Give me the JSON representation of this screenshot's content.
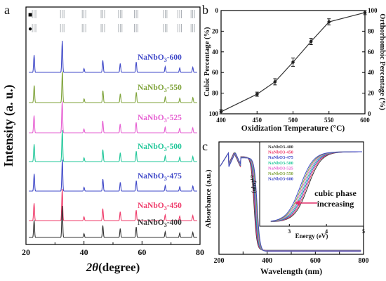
{
  "chart_data": [
    {
      "panel": "a",
      "type": "line",
      "xlabel_symbol": "2θ",
      "xlabel_unit": "(degree)",
      "ylabel": "Intensity (a. u.)",
      "xlim": [
        20,
        80
      ],
      "x_ticks": [
        "20",
        "40",
        "60",
        "80"
      ],
      "reference_markers": [
        "■",
        "●"
      ],
      "peaks_2theta": [
        22.8,
        32.5,
        40.0,
        46.5,
        52.5,
        58.0,
        68.0,
        73.0,
        77.5
      ],
      "peak_heights": [
        0.55,
        1.0,
        0.12,
        0.38,
        0.28,
        0.33,
        0.18,
        0.14,
        0.16
      ],
      "series": [
        {
          "base": "NaNbO",
          "sub": "3",
          "suffix": "-600",
          "color": "#3f48c8"
        },
        {
          "base": "NaNbO",
          "sub": "3",
          "suffix": "-550",
          "color": "#7fa33a"
        },
        {
          "base": "NaNbO",
          "sub": "3",
          "suffix": "-525",
          "color": "#e65fd2"
        },
        {
          "base": "NaNbO",
          "sub": "3",
          "suffix": "-500",
          "color": "#21c79a"
        },
        {
          "base": "NaNbO",
          "sub": "3",
          "suffix": "-475",
          "color": "#3f48c8"
        },
        {
          "base": "NaNbO",
          "sub": "3",
          "suffix": "-450",
          "color": "#ef3b6a"
        },
        {
          "base": "NaNbO",
          "sub": "3",
          "suffix": "-400",
          "color": "#333333"
        }
      ]
    },
    {
      "panel": "b",
      "type": "line",
      "xlabel": "Oxidization Temperature (°C)",
      "ylabel_left": "Cubic Percentage (%)",
      "ylabel_right": "Orthorhombic Percentage (%)",
      "xlim": [
        400,
        600
      ],
      "x_ticks": [
        400,
        450,
        500,
        550,
        600
      ],
      "y_left_ticks": [
        0,
        20,
        40,
        60,
        80,
        100
      ],
      "y_right_ticks": [
        0,
        20,
        40,
        60,
        80,
        100
      ],
      "x": [
        400,
        450,
        475,
        500,
        525,
        550,
        600
      ],
      "cubic": [
        98,
        81,
        69,
        50,
        30,
        11,
        2
      ],
      "orthorhombic": [
        2,
        19,
        31,
        50,
        70,
        89,
        98
      ],
      "error": [
        2,
        2,
        3,
        4,
        3,
        3,
        2
      ]
    },
    {
      "panel": "c",
      "type": "line",
      "xlabel": "Wavelength (nm)",
      "ylabel": "Absorbance (a.u.)",
      "xlim": [
        200,
        800
      ],
      "x_ticks": [
        200,
        300,
        400,
        500,
        600,
        700,
        800
      ],
      "inset": {
        "xlabel": "Energy (eV)",
        "ylabel": "(αhν)",
        "ylabel_sup": "1/2",
        "x_ticks": [
          "3",
          "4",
          "5"
        ],
        "annotation_line1": "cubic phase",
        "annotation_line2": "increasing"
      },
      "series": [
        {
          "name": "NaNbO3-400",
          "color": "#333333"
        },
        {
          "name": "NaNbO3-450",
          "color": "#ef3b6a"
        },
        {
          "name": "NaNbO3-475",
          "color": "#3f48c8"
        },
        {
          "name": "NaNbO3-500",
          "color": "#21c79a"
        },
        {
          "name": "NaNbO3-525",
          "color": "#e65fd2"
        },
        {
          "name": "NaNbO3-550",
          "color": "#7fa33a"
        },
        {
          "name": "NaNbO3-600",
          "color": "#3f48c8"
        }
      ]
    }
  ],
  "panel_labels": [
    "a",
    "b",
    "c"
  ]
}
